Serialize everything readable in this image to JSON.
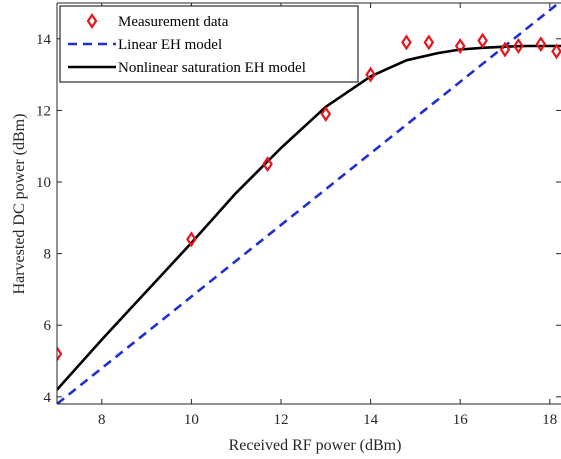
{
  "chart_data": {
    "type": "line",
    "xlabel": "Received RF power (dBm)",
    "ylabel": "Harvested DC power (dBm)",
    "xlim": [
      7,
      18.25
    ],
    "ylim": [
      3.8,
      15
    ],
    "xticks": [
      8,
      10,
      12,
      14,
      16,
      18
    ],
    "yticks": [
      4,
      6,
      8,
      10,
      12,
      14
    ],
    "grid": false,
    "legend_position": "top-left",
    "series": [
      {
        "name": "Measurement data",
        "kind": "scatter",
        "marker": "diamond",
        "color": "#e8151b",
        "x": [
          7.0,
          10.0,
          11.7,
          13.0,
          14.0,
          14.8,
          15.3,
          16.0,
          16.5,
          17.0,
          17.3,
          17.8,
          18.15
        ],
        "y": [
          5.2,
          8.4,
          10.5,
          11.9,
          13.0,
          13.9,
          13.9,
          13.8,
          13.95,
          13.7,
          13.8,
          13.85,
          13.65
        ]
      },
      {
        "name": "Linear EH model",
        "kind": "line",
        "style": "dashed",
        "color": "#1f2fd4",
        "x": [
          7.0,
          18.25
        ],
        "y": [
          3.8,
          15.05
        ]
      },
      {
        "name": "Nonlinear saturation EH model",
        "kind": "line",
        "style": "solid",
        "color": "#000000",
        "x": [
          7.0,
          8.0,
          9.0,
          10.0,
          11.0,
          12.0,
          13.0,
          14.0,
          14.8,
          15.5,
          16.0,
          16.5,
          17.0,
          17.5,
          18.0,
          18.25
        ],
        "y": [
          4.2,
          5.6,
          6.95,
          8.3,
          9.7,
          10.95,
          12.1,
          12.95,
          13.4,
          13.6,
          13.7,
          13.75,
          13.78,
          13.8,
          13.8,
          13.8
        ]
      }
    ]
  }
}
